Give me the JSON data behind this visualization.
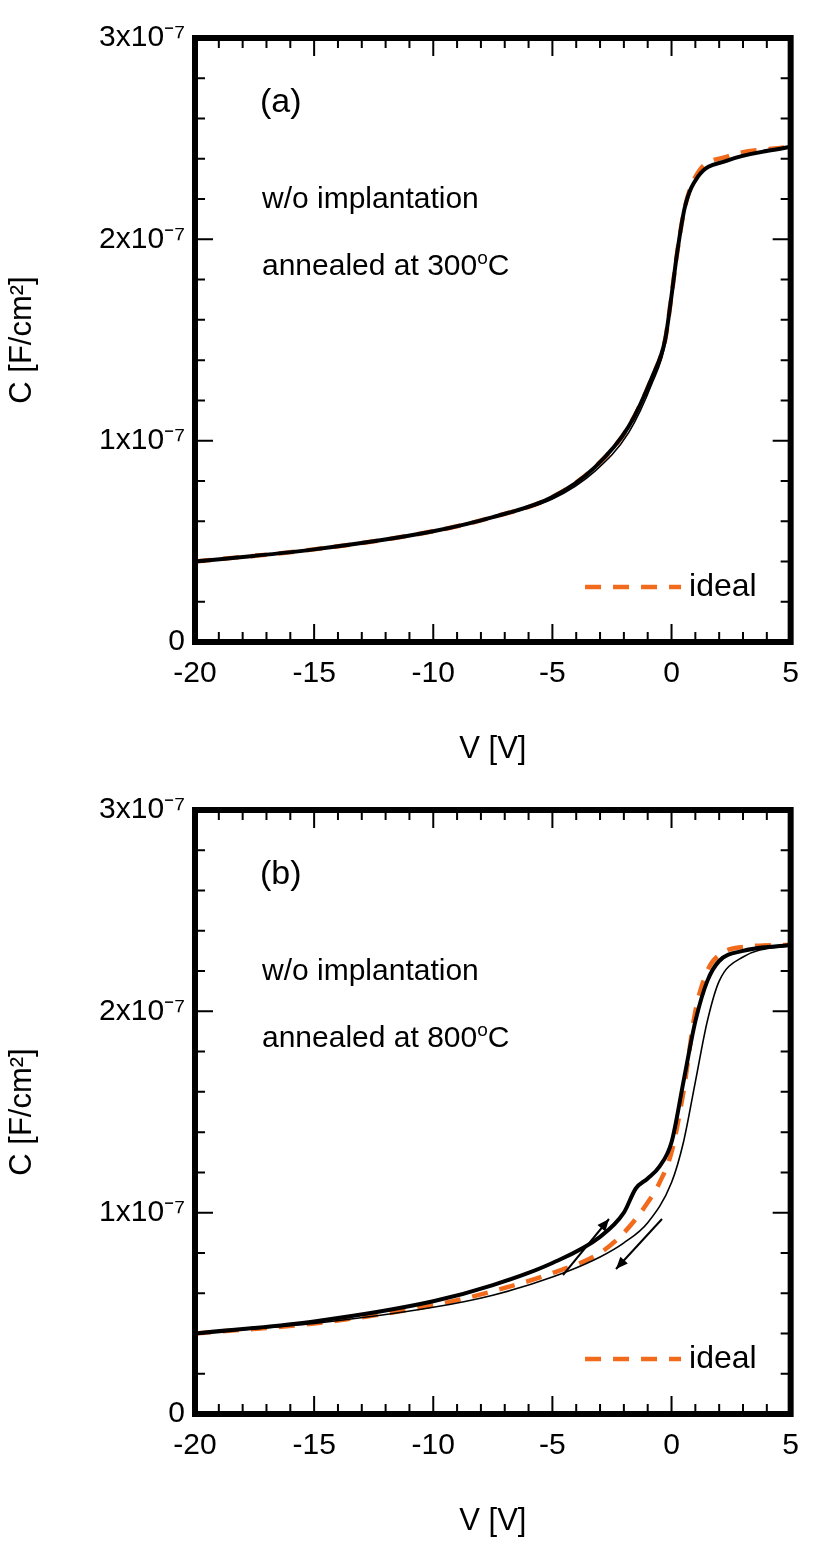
{
  "chart_data": [
    {
      "type": "line",
      "xlabel": "V [V]",
      "ylabel": "C [F/cm²]",
      "annotations": [
        "(a)",
        "w/o implantation",
        "annealed at 300$^{o}$C"
      ],
      "legend": "bottom right",
      "grid": false,
      "xlim": [
        -20,
        5
      ],
      "ylim": [
        0,
        3e-07
      ],
      "xticks": [
        -20,
        {
          "value": -19,
          "label": null
        },
        {
          "value": -18,
          "label": null
        },
        {
          "value": -17,
          "label": null
        },
        {
          "value": -16,
          "label": null
        },
        -15,
        {
          "value": -14,
          "label": null
        },
        {
          "value": -13,
          "label": null
        },
        {
          "value": -12,
          "label": null
        },
        {
          "value": -11,
          "label": null
        },
        -10,
        {
          "value": -9,
          "label": null
        },
        {
          "value": -8,
          "label": null
        },
        {
          "value": -7,
          "label": null
        },
        {
          "value": -6,
          "label": null
        },
        -5,
        {
          "value": -4,
          "label": null
        },
        {
          "value": -3,
          "label": null
        },
        {
          "value": -2,
          "label": null
        },
        {
          "value": -1,
          "label": null
        },
        0,
        {
          "value": 1,
          "label": null
        },
        {
          "value": 2,
          "label": null
        },
        {
          "value": 3,
          "label": null
        },
        {
          "value": 4,
          "label": null
        },
        5
      ],
      "yticks": [
        0,
        {
          "value": 2e-08,
          "label": null
        },
        {
          "value": 4e-08,
          "label": null
        },
        {
          "value": 6e-08,
          "label": null
        },
        {
          "value": 8e-08,
          "label": null
        },
        {
          "value": 1e-07,
          "label": "1x10⁻⁷"
        },
        {
          "value": 1.2e-07,
          "label": null
        },
        {
          "value": 1.4e-07,
          "label": null
        },
        {
          "value": 1.6e-07,
          "label": null
        },
        {
          "value": 1.8e-07,
          "label": null
        },
        {
          "value": 2e-07,
          "label": "2x10⁻⁷"
        },
        {
          "value": 2.2e-07,
          "label": null
        },
        {
          "value": 2.4e-07,
          "label": null
        },
        {
          "value": 2.6e-07,
          "label": null
        },
        {
          "value": 2.8e-07,
          "label": null
        },
        {
          "value": 3e-07,
          "label": "3x10⁻⁷"
        }
      ],
      "series": [
        {
          "color": "#000000",
          "line_style": "solid",
          "x": [
            -20,
            -15,
            -10,
            -7.5,
            -5,
            -3.2,
            -1.8,
            -0.8,
            -0.27,
            0,
            0.22,
            0.56,
            1.1,
            2.3,
            5
          ],
          "values": [
            4e-08,
            4.6e-08,
            5.5e-08,
            6.2e-08,
            7.2e-08,
            8.7e-08,
            1.07e-07,
            1.32e-07,
            1.5e-07,
            1.72e-07,
            1.92e-07,
            2.16e-07,
            2.31e-07,
            2.39e-07,
            2.46e-07
          ]
        },
        {
          "color": "#000000",
          "line_style": "solid",
          "x": [
            -20,
            -15,
            -10,
            -7.5,
            -5,
            -3.2,
            -1.8,
            -0.8,
            -0.27,
            0,
            0.22,
            0.56,
            1.1,
            2.3,
            5
          ],
          "values": [
            4e-08,
            4.6e-08,
            5.5e-08,
            6.2e-08,
            7.1e-08,
            8.5e-08,
            1.04e-07,
            1.29e-07,
            1.48e-07,
            1.71e-07,
            1.91e-07,
            2.15e-07,
            2.31e-07,
            2.39e-07,
            2.46e-07
          ]
        },
        {
          "name": "ideal",
          "color": "#f26b1d",
          "line_style": "dashed",
          "x": [
            -20,
            -15,
            -10,
            -7.5,
            -5,
            -3.2,
            -1.8,
            -0.8,
            -0.27,
            0,
            0.22,
            0.56,
            1.1,
            2.3,
            5
          ],
          "values": [
            4e-08,
            4.6e-08,
            5.5e-08,
            6.2e-08,
            7.2e-08,
            8.7e-08,
            1.07e-07,
            1.32e-07,
            1.5e-07,
            1.72e-07,
            1.92e-07,
            2.16e-07,
            2.33e-07,
            2.41e-07,
            2.46e-07
          ]
        }
      ]
    },
    {
      "type": "line",
      "xlabel": "V [V]",
      "ylabel": "C [F/cm²]",
      "annotations": [
        "(b)",
        "w/o implantation",
        "annealed at 800$^{o}$C"
      ],
      "legend": "bottom right",
      "grid": false,
      "xlim": [
        -20,
        5
      ],
      "ylim": [
        0,
        3e-07
      ],
      "xticks": [
        -20,
        {
          "value": -19,
          "label": null
        },
        {
          "value": -18,
          "label": null
        },
        {
          "value": -17,
          "label": null
        },
        {
          "value": -16,
          "label": null
        },
        -15,
        {
          "value": -14,
          "label": null
        },
        {
          "value": -13,
          "label": null
        },
        {
          "value": -12,
          "label": null
        },
        {
          "value": -11,
          "label": null
        },
        -10,
        {
          "value": -9,
          "label": null
        },
        {
          "value": -8,
          "label": null
        },
        {
          "value": -7,
          "label": null
        },
        {
          "value": -6,
          "label": null
        },
        -5,
        {
          "value": -4,
          "label": null
        },
        {
          "value": -3,
          "label": null
        },
        {
          "value": -2,
          "label": null
        },
        {
          "value": -1,
          "label": null
        },
        0,
        {
          "value": 1,
          "label": null
        },
        {
          "value": 2,
          "label": null
        },
        {
          "value": 3,
          "label": null
        },
        {
          "value": 4,
          "label": null
        },
        5
      ],
      "yticks": [
        0,
        {
          "value": 2e-08,
          "label": null
        },
        {
          "value": 4e-08,
          "label": null
        },
        {
          "value": 6e-08,
          "label": null
        },
        {
          "value": 8e-08,
          "label": null
        },
        {
          "value": 1e-07,
          "label": "1x10⁻⁷"
        },
        {
          "value": 1.2e-07,
          "label": null
        },
        {
          "value": 1.4e-07,
          "label": null
        },
        {
          "value": 1.6e-07,
          "label": null
        },
        {
          "value": 1.8e-07,
          "label": null
        },
        {
          "value": 2e-07,
          "label": "2x10⁻⁷"
        },
        {
          "value": 2.2e-07,
          "label": null
        },
        {
          "value": 2.4e-07,
          "label": null
        },
        {
          "value": 2.6e-07,
          "label": null
        },
        {
          "value": 2.8e-07,
          "label": null
        },
        {
          "value": 3e-07,
          "label": "3x10⁻⁷"
        }
      ],
      "series": [
        {
          "color": "#000000",
          "line_style": "solid",
          "x": [
            -20,
            -15,
            -10,
            -7.5,
            -5,
            -3,
            -2,
            -1.5,
            -1,
            -0.5,
            0,
            0.5,
            1,
            1.5,
            2,
            3,
            5
          ],
          "values": [
            4e-08,
            4.6e-08,
            5.6e-08,
            6.4e-08,
            7.5e-08,
            8.8e-08,
            1e-07,
            1.12e-07,
            1.17e-07,
            1.23e-07,
            1.35e-07,
            1.65e-07,
            1.95e-07,
            2.15e-07,
            2.25e-07,
            2.3e-07,
            2.33e-07
          ]
        },
        {
          "color": "#000000",
          "line_style": "solid",
          "x": [
            -20,
            -15,
            -10,
            -7.5,
            -5,
            -3,
            -2,
            -1,
            0,
            0.5,
            1,
            1.5,
            2,
            3,
            5
          ],
          "values": [
            4e-08,
            4.5e-08,
            5.3e-08,
            5.9e-08,
            6.8e-08,
            7.8e-08,
            8.5e-08,
            9.5e-08,
            1.15e-07,
            1.35e-07,
            1.65e-07,
            1.95e-07,
            2.15e-07,
            2.27e-07,
            2.33e-07
          ]
        },
        {
          "name": "ideal",
          "color": "#f26b1d",
          "line_style": "dashed",
          "x": [
            -20,
            -15,
            -10,
            -7.5,
            -5,
            -3,
            -2,
            -1,
            -0.5,
            0,
            0.5,
            1,
            1.5,
            2,
            3,
            5
          ],
          "values": [
            4e-08,
            4.5e-08,
            5.4e-08,
            6.1e-08,
            7e-08,
            8e-08,
            9e-08,
            1.05e-07,
            1.15e-07,
            1.3e-07,
            1.6e-07,
            2e-07,
            2.2e-07,
            2.28e-07,
            2.32e-07,
            2.33e-07
          ]
        }
      ]
    }
  ]
}
